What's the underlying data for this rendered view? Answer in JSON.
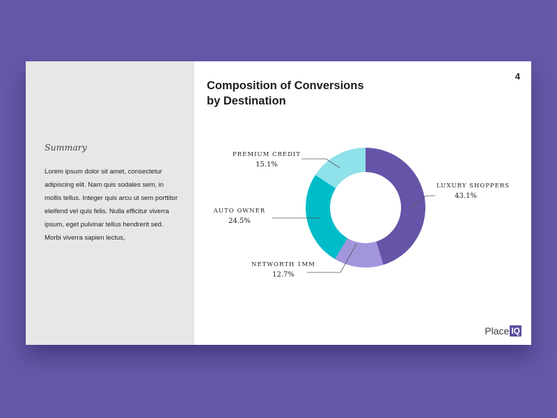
{
  "page_number": "4",
  "summary": {
    "heading": "Summary",
    "body": "Lorem ipsum dolor sit amet, consectetur adipiscing elit. Nam quis sodales sem, in mollis tellus. Integer quis arcu ut sem porttitor eleifend vel quis felis. Nulla efficitur viverra ipsum, eget pulvinar tellus hendrerit sed. Morbi viverra sapien lectus,"
  },
  "logo": {
    "text": "Place",
    "badge": "IQ",
    "color": "#5d4fa0"
  },
  "chart_data": {
    "type": "pie",
    "style": "donut",
    "title": "Composition of Conversions by Destination",
    "title_lines": [
      "Composition of Conversions",
      "by Destination"
    ],
    "labels": [
      "LUXURY SHOPPERS",
      "NETWORTH 1MM",
      "AUTO OWNER",
      "PREMIUM CREDIT"
    ],
    "values": [
      43.1,
      12.7,
      24.5,
      15.1
    ],
    "value_labels": [
      "43.1%",
      "12.7%",
      "24.5%",
      "15.1%"
    ],
    "colors": [
      "#6554a8",
      "#a395dc",
      "#00bcc9",
      "#8fe1ea"
    ],
    "start_angle": "12 o'clock",
    "direction": "clockwise",
    "legend": "none (callout labels)"
  }
}
